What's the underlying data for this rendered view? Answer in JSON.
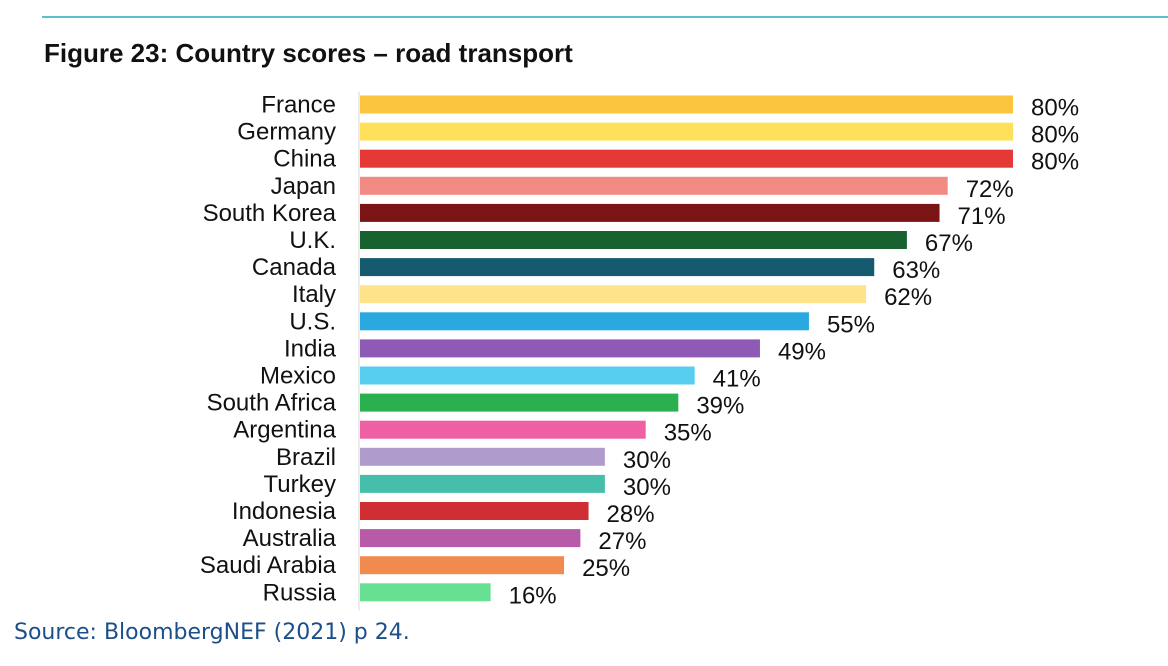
{
  "figure": {
    "title": "Figure 23: Country scores – road transport",
    "source": "Source: BloombergNEF (2021) p 24."
  },
  "chart_data": {
    "type": "bar",
    "orientation": "horizontal",
    "title": "Figure 23: Country scores – road transport",
    "xlabel": "",
    "ylabel": "",
    "xlim": [
      0,
      80
    ],
    "grid": false,
    "value_suffix": "%",
    "categories": [
      "France",
      "Germany",
      "China",
      "Japan",
      "South Korea",
      "U.K.",
      "Canada",
      "Italy",
      "U.S.",
      "India",
      "Mexico",
      "South Africa",
      "Argentina",
      "Brazil",
      "Turkey",
      "Indonesia",
      "Australia",
      "Saudi Arabia",
      "Russia"
    ],
    "values": [
      80,
      80,
      80,
      72,
      71,
      67,
      63,
      62,
      55,
      49,
      41,
      39,
      35,
      30,
      30,
      28,
      27,
      25,
      16
    ],
    "colors": [
      "#fbc53d",
      "#ffe05a",
      "#e53935",
      "#f28a84",
      "#7b1414",
      "#17622e",
      "#165a70",
      "#ffe38a",
      "#29a9e0",
      "#8e5ab5",
      "#57cdf0",
      "#2bb04f",
      "#ee5fa4",
      "#b09ccc",
      "#45bfab",
      "#cf2e33",
      "#b75aa8",
      "#f08a4e",
      "#67e091"
    ]
  }
}
